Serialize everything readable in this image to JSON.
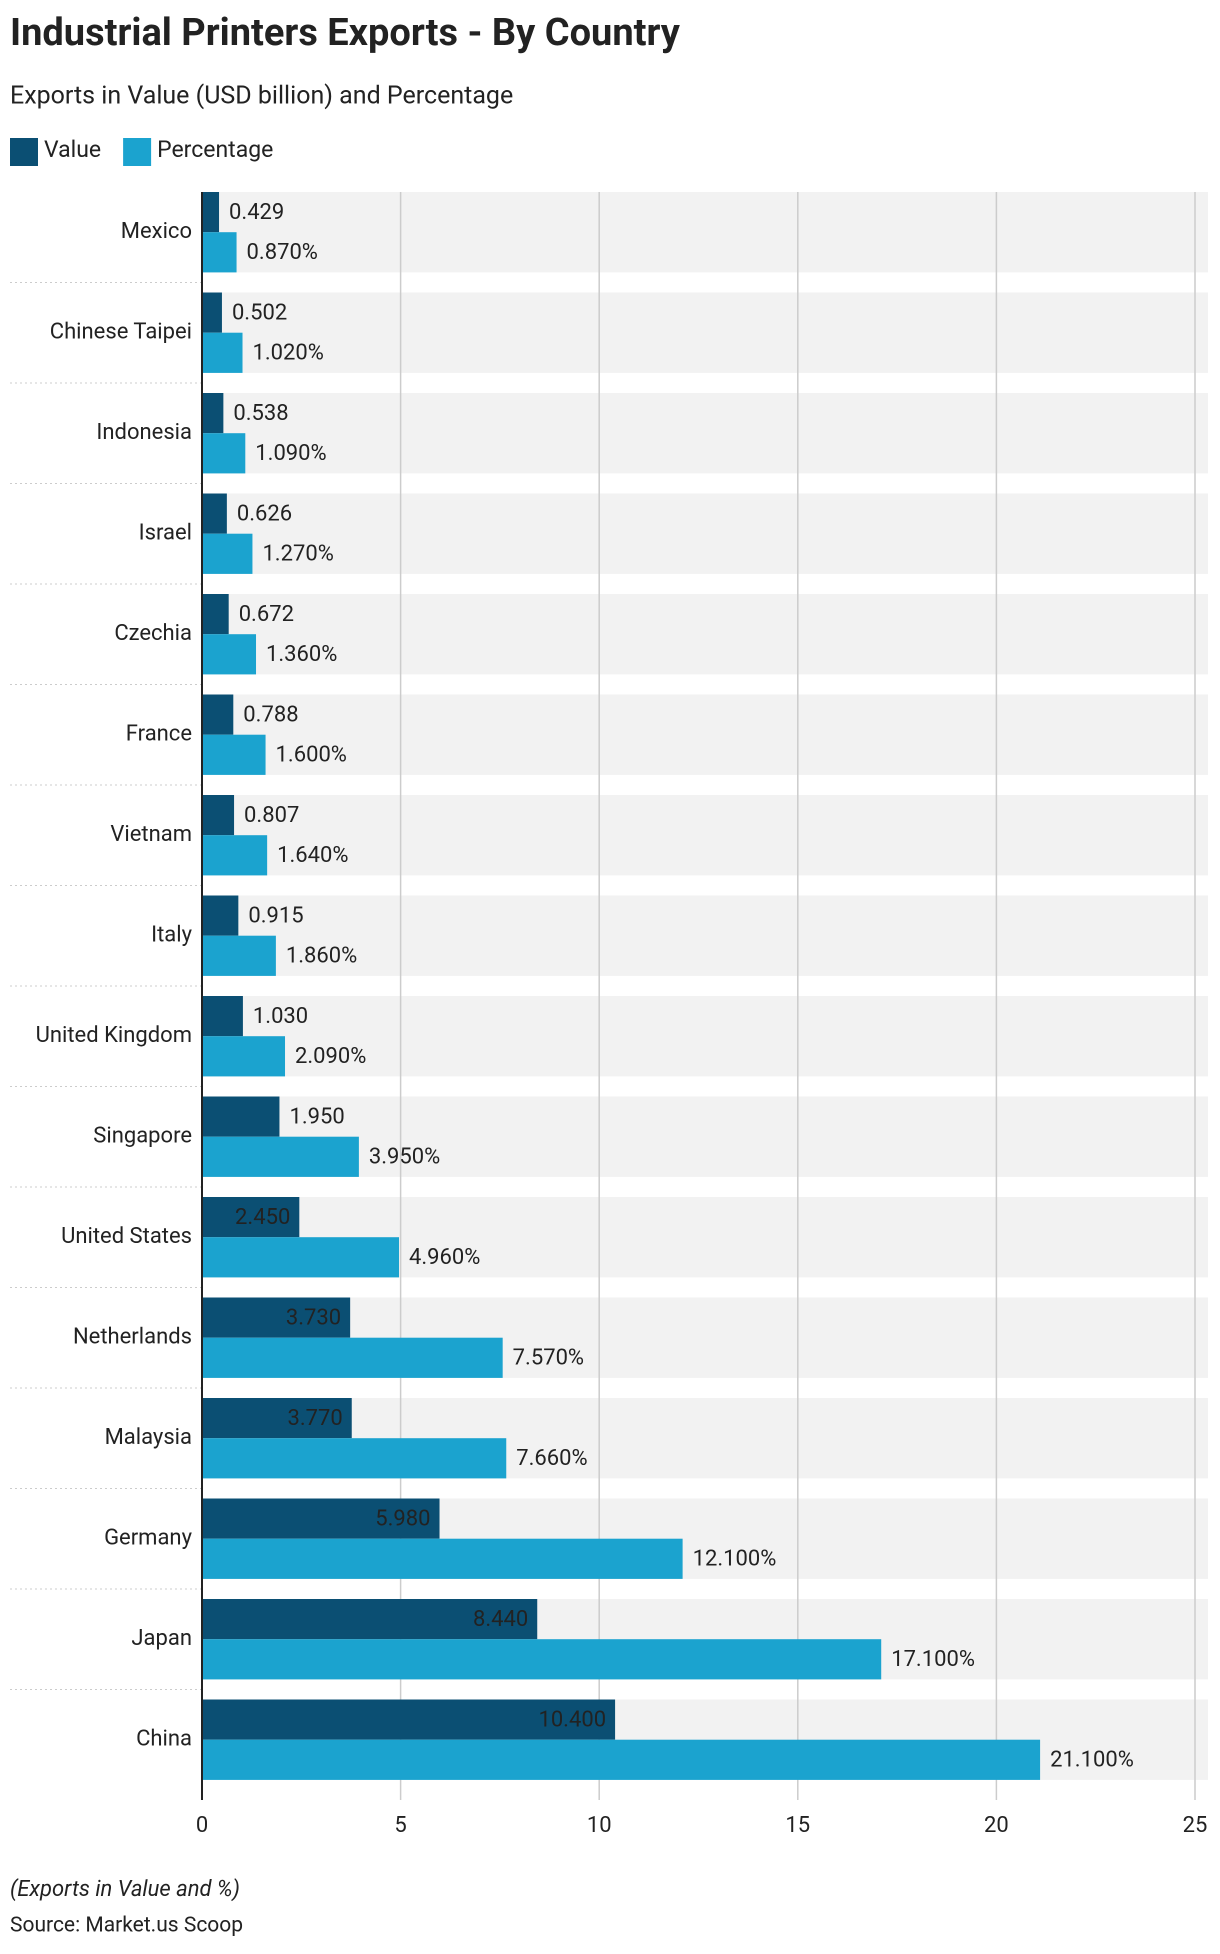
{
  "chart_data": {
    "type": "bar",
    "orientation": "horizontal",
    "title": "Industrial Printers Exports - By Country",
    "subtitle": "Exports in Value (USD billion) and Percentage",
    "note": "(Exports in Value and %)",
    "source": "Source: Market.us Scoop",
    "categories": [
      "Mexico",
      "Chinese Taipei",
      "Indonesia",
      "Israel",
      "Czechia",
      "France",
      "Vietnam",
      "Italy",
      "United Kingdom",
      "Singapore",
      "United States",
      "Netherlands",
      "Malaysia",
      "Germany",
      "Japan",
      "China"
    ],
    "series": [
      {
        "name": "Value",
        "color": "#0b4f73",
        "values": [
          0.429,
          0.502,
          0.538,
          0.626,
          0.672,
          0.788,
          0.807,
          0.915,
          1.03,
          1.95,
          2.45,
          3.73,
          3.77,
          5.98,
          8.44,
          10.4
        ],
        "value_labels": [
          "0.429",
          "0.502",
          "0.538",
          "0.626",
          "0.672",
          "0.788",
          "0.807",
          "0.915",
          "1.030",
          "1.950",
          "2.450",
          "3.730",
          "3.770",
          "5.980",
          "8.440",
          "10.400"
        ]
      },
      {
        "name": "Percentage",
        "color": "#1ba3cf",
        "values": [
          0.87,
          1.02,
          1.09,
          1.27,
          1.36,
          1.6,
          1.64,
          1.86,
          2.09,
          3.95,
          4.96,
          7.57,
          7.66,
          12.1,
          17.1,
          21.1
        ],
        "value_labels": [
          "0.870%",
          "1.020%",
          "1.090%",
          "1.270%",
          "1.360%",
          "1.600%",
          "1.640%",
          "1.860%",
          "2.090%",
          "3.950%",
          "4.960%",
          "7.570%",
          "7.660%",
          "12.100%",
          "17.100%",
          "21.100%"
        ]
      }
    ],
    "xlim": [
      0,
      25
    ],
    "xticks": [
      0,
      5,
      10,
      15,
      20,
      25
    ],
    "grid": true
  }
}
